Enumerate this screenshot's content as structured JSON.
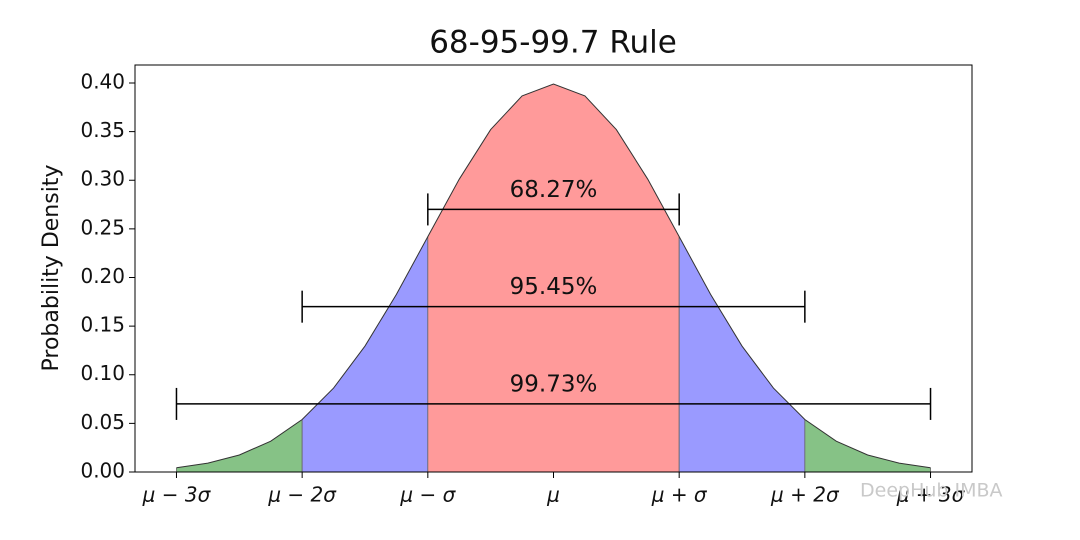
{
  "chart_data": {
    "type": "area",
    "title": "68-95-99.7 Rule",
    "y_label": "Probability Density",
    "x": [
      -3,
      -2.75,
      -2.5,
      -2.25,
      -2,
      -1.75,
      -1.5,
      -1.25,
      -1,
      -0.75,
      -0.5,
      -0.25,
      0,
      0.25,
      0.5,
      0.75,
      1,
      1.25,
      1.5,
      1.75,
      2,
      2.25,
      2.5,
      2.75,
      3
    ],
    "values": [
      0.0044,
      0.0091,
      0.0175,
      0.0317,
      0.054,
      0.0863,
      0.1295,
      0.1826,
      0.242,
      0.3011,
      0.3521,
      0.3867,
      0.3989,
      0.3867,
      0.3521,
      0.3011,
      0.242,
      0.1826,
      0.1295,
      0.0863,
      0.054,
      0.0317,
      0.0175,
      0.0091,
      0.0044
    ],
    "line_color": "#333333",
    "regions": [
      {
        "from": -3,
        "to": -2,
        "color": "#86c286"
      },
      {
        "from": -2,
        "to": -1,
        "color": "#9a9aff"
      },
      {
        "from": -1,
        "to": 1,
        "color": "#ff9a9a"
      },
      {
        "from": 1,
        "to": 2,
        "color": "#9a9aff"
      },
      {
        "from": 2,
        "to": 3,
        "color": "#86c286"
      }
    ],
    "intervals": [
      {
        "label": "68.27%",
        "from": -1,
        "to": 1,
        "y": 0.27
      },
      {
        "label": "95.45%",
        "from": -2,
        "to": 2,
        "y": 0.17
      },
      {
        "label": "99.73%",
        "from": -3,
        "to": 3,
        "y": 0.07
      }
    ],
    "xlim": [
      -3.33,
      3.33
    ],
    "xticks": [
      {
        "value": -3,
        "label": "μ − 3σ"
      },
      {
        "value": -2,
        "label": "μ − 2σ"
      },
      {
        "value": -1,
        "label": "μ − σ"
      },
      {
        "value": 0,
        "label": "μ"
      },
      {
        "value": 1,
        "label": "μ + σ"
      },
      {
        "value": 2,
        "label": "μ + 2σ"
      },
      {
        "value": 3,
        "label": "μ + 3σ"
      }
    ],
    "ylim": [
      0,
      0.4185
    ],
    "yticks": [
      {
        "value": 0,
        "label": "0.00"
      },
      {
        "value": 0.05,
        "label": "0.05"
      },
      {
        "value": 0.1,
        "label": "0.10"
      },
      {
        "value": 0.15,
        "label": "0.15"
      },
      {
        "value": 0.2,
        "label": "0.20"
      },
      {
        "value": 0.25,
        "label": "0.25"
      },
      {
        "value": 0.3,
        "label": "0.30"
      },
      {
        "value": 0.35,
        "label": "0.35"
      },
      {
        "value": 0.4,
        "label": "0.40"
      }
    ],
    "grid": false,
    "watermark": "DeepHub IMBA"
  }
}
